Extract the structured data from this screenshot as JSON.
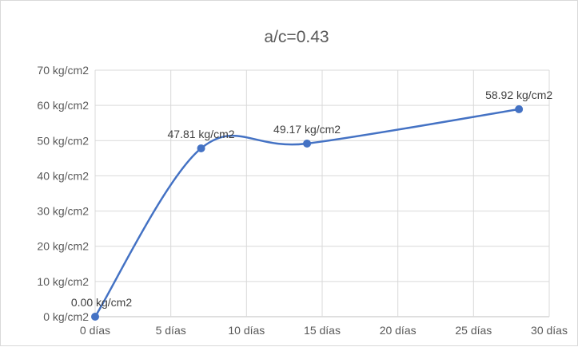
{
  "chart_data": {
    "type": "line",
    "title": "a/c=0.43",
    "xlabel": "",
    "ylabel": "",
    "x_unit_suffix": " días",
    "y_unit_suffix": " kg/cm2",
    "xlim": [
      0,
      30
    ],
    "ylim": [
      0,
      70
    ],
    "x_ticks": [
      0,
      5,
      10,
      15,
      20,
      25,
      30
    ],
    "y_ticks": [
      0,
      10,
      20,
      30,
      40,
      50,
      60,
      70
    ],
    "x_tick_labels": [
      "0 días",
      "5 días",
      "10 días",
      "15 días",
      "20 días",
      "25 días",
      "30 días"
    ],
    "y_tick_labels": [
      "0 kg/cm2",
      "10 kg/cm2",
      "20 kg/cm2",
      "30 kg/cm2",
      "40 kg/cm2",
      "50 kg/cm2",
      "60 kg/cm2",
      "70 kg/cm2"
    ],
    "smoothed": true,
    "grid": true,
    "legend": "none",
    "series": [
      {
        "color": "#4472c4",
        "x": [
          0,
          7,
          14,
          28
        ],
        "y": [
          0.0,
          47.81,
          49.17,
          58.92
        ],
        "labels": [
          "0.00 kg/cm2",
          "47.81 kg/cm2",
          "49.17 kg/cm2",
          "58.92 kg/cm2"
        ]
      }
    ]
  }
}
